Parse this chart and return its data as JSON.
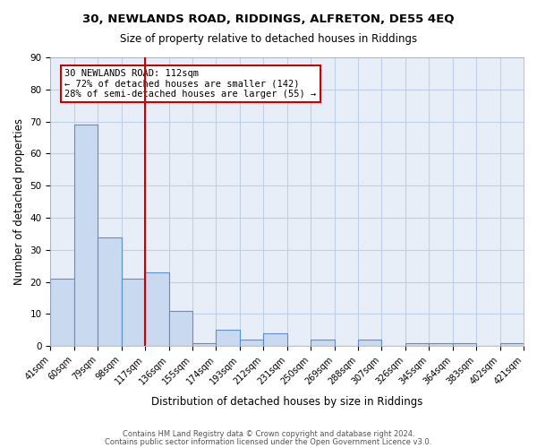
{
  "title1": "30, NEWLANDS ROAD, RIDDINGS, ALFRETON, DE55 4EQ",
  "title2": "Size of property relative to detached houses in Riddings",
  "xlabel": "Distribution of detached houses by size in Riddings",
  "ylabel": "Number of detached properties",
  "categories": [
    "41sqm",
    "60sqm",
    "79sqm",
    "98sqm",
    "117sqm",
    "136sqm",
    "155sqm",
    "174sqm",
    "193sqm",
    "212sqm",
    "231sqm",
    "250sqm",
    "269sqm",
    "288sqm",
    "307sqm",
    "326sqm",
    "345sqm",
    "364sqm",
    "383sqm",
    "402sqm",
    "421sqm"
  ],
  "bar_values": [
    21,
    69,
    34,
    21,
    23,
    11,
    1,
    5,
    2,
    4,
    0,
    2,
    0,
    2,
    0,
    1,
    1,
    1,
    0,
    1
  ],
  "bar_color": "#c9d9f0",
  "bar_edge_color": "#5b8fd4",
  "grid_color": "#c0cfe8",
  "background_color": "#e8eef8",
  "red_line_x": 4,
  "annotation_line1": "30 NEWLANDS ROAD: 112sqm",
  "annotation_line2": "← 72% of detached houses are smaller (142)",
  "annotation_line3": "28% of semi-detached houses are larger (55) →",
  "red_color": "#cc0000",
  "ylim": [
    0,
    90
  ],
  "yticks": [
    0,
    10,
    20,
    30,
    40,
    50,
    60,
    70,
    80,
    90
  ],
  "footer1": "Contains HM Land Registry data © Crown copyright and database right 2024.",
  "footer2": "Contains public sector information licensed under the Open Government Licence v3.0."
}
